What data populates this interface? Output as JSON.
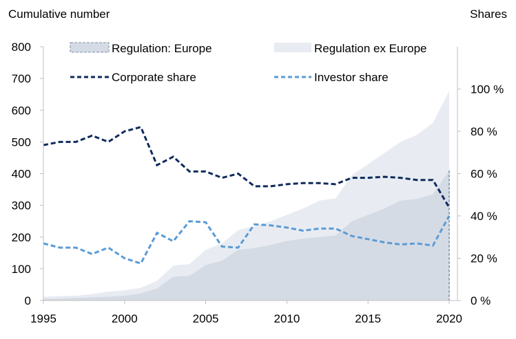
{
  "chart_data": {
    "type": "area+line",
    "left_axis_title": "Cumulative number",
    "right_axis_title": "Shares",
    "x": [
      1995,
      1996,
      1997,
      1998,
      1999,
      2000,
      2001,
      2002,
      2003,
      2004,
      2005,
      2006,
      2007,
      2008,
      2009,
      2010,
      2011,
      2012,
      2013,
      2014,
      2015,
      2016,
      2017,
      2018,
      2019,
      2020
    ],
    "x_ticks": [
      "1995",
      "2000",
      "2005",
      "2010",
      "2015",
      "2020"
    ],
    "y_left_ticks": [
      "0",
      "100",
      "200",
      "300",
      "400",
      "500",
      "600",
      "700",
      "800"
    ],
    "y_right_ticks": [
      "0 %",
      "20 %",
      "40 %",
      "60 %",
      "80 %",
      "100 %"
    ],
    "ylim_left": [
      0,
      800
    ],
    "ylim_right": [
      0,
      120
    ],
    "legend": {
      "regulation_europe": "Regulation: Europe",
      "regulation_ex_europe": "Regulation ex Europe",
      "corporate_share": "Corporate share",
      "investor_share": "Investor share"
    },
    "area_series": [
      {
        "key": "regulation_europe",
        "color": "#d5dbe5",
        "values": [
          5,
          6,
          8,
          10,
          12,
          15,
          22,
          38,
          75,
          78,
          112,
          125,
          160,
          165,
          175,
          188,
          195,
          200,
          205,
          250,
          270,
          290,
          315,
          320,
          335,
          410
        ]
      },
      {
        "key": "regulation_ex_europe",
        "color": "#e8ecf2",
        "values": [
          12,
          14,
          15,
          20,
          28,
          32,
          40,
          62,
          110,
          115,
          160,
          180,
          222,
          235,
          250,
          270,
          290,
          315,
          322,
          395,
          430,
          465,
          500,
          522,
          560,
          660
        ]
      }
    ],
    "line_series": [
      {
        "key": "corporate_share",
        "color": "#0e2a5c",
        "values": [
          73.5,
          75,
          75,
          78,
          75,
          80,
          82,
          64,
          68,
          61,
          61,
          58,
          60,
          54,
          54,
          55,
          55.5,
          55.5,
          55,
          58,
          58,
          58.5,
          58,
          57,
          57,
          44
        ]
      },
      {
        "key": "investor_share",
        "color": "#5b9bd5",
        "values": [
          27,
          25,
          25,
          22,
          25,
          20,
          17.5,
          32,
          28,
          37.5,
          37,
          25.5,
          25,
          36,
          35.5,
          34.5,
          33,
          34,
          34,
          30.5,
          29,
          27.5,
          26.5,
          27,
          26,
          40
        ]
      }
    ],
    "grid": false
  }
}
